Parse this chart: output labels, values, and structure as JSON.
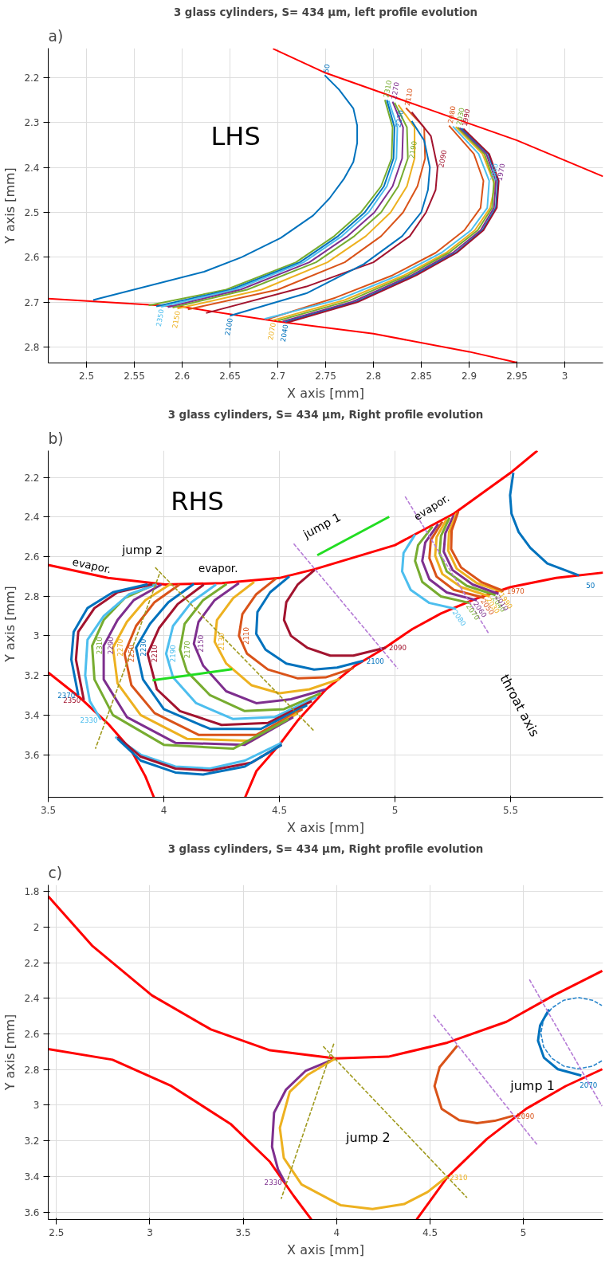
{
  "chart_data": [
    {
      "type": "line",
      "title": "3 glass cylinders, S= 434 μm, left profile evolution",
      "xlabel": "X axis [mm]",
      "ylabel": "Y axis [mm]",
      "xlim": [
        2.46,
        3.04
      ],
      "ylim": [
        2.835,
        2.135
      ],
      "xticks": [
        2.5,
        2.55,
        2.6,
        2.65,
        2.7,
        2.75,
        2.8,
        2.85,
        2.9,
        2.95,
        3
      ],
      "yticks": [
        2.2,
        2.3,
        2.4,
        2.5,
        2.6,
        2.7,
        2.8
      ],
      "grid": true,
      "series": [
        {
          "color": "#ff0000",
          "x": [
            2.695,
            2.75,
            2.85,
            2.95,
            3.04
          ],
          "values": [
            2.136,
            2.19,
            2.265,
            2.34,
            2.42
          ]
        },
        {
          "color": "#ff0000",
          "x": [
            2.46,
            2.6,
            2.7,
            2.8,
            2.9,
            2.95
          ],
          "values": [
            2.692,
            2.71,
            2.743,
            2.77,
            2.81,
            2.834
          ]
        },
        {
          "name": "50",
          "color": "#0072bd",
          "x": [
            2.749,
            2.764,
            2.779,
            2.783,
            2.783,
            2.779,
            2.769,
            2.754,
            2.737,
            2.703,
            2.662,
            2.623,
            2.507
          ],
          "values": [
            2.195,
            2.227,
            2.269,
            2.307,
            2.346,
            2.388,
            2.426,
            2.469,
            2.507,
            2.557,
            2.6,
            2.632,
            2.695
          ]
        },
        {
          "name": "2310",
          "color": "#77ac30",
          "x": [
            2.812,
            2.82,
            2.819,
            2.808,
            2.787,
            2.759,
            2.719,
            2.646,
            2.565
          ],
          "values": [
            2.25,
            2.311,
            2.38,
            2.442,
            2.5,
            2.553,
            2.611,
            2.672,
            2.707
          ]
        },
        {
          "name": "2230",
          "color": "#0072bd",
          "x": [
            2.814,
            2.822,
            2.821,
            2.811,
            2.791,
            2.763,
            2.723,
            2.651,
            2.573
          ],
          "values": [
            2.25,
            2.311,
            2.38,
            2.442,
            2.5,
            2.553,
            2.611,
            2.672,
            2.709
          ]
        },
        {
          "name": "2350",
          "color": "#4dbeee",
          "x": [
            2.816,
            2.825,
            2.824,
            2.814,
            2.795,
            2.767,
            2.727,
            2.655,
            2.578
          ],
          "values": [
            2.252,
            2.311,
            2.38,
            2.442,
            2.5,
            2.553,
            2.611,
            2.672,
            2.71
          ]
        },
        {
          "name": "2270",
          "color": "#7e2f8e",
          "x": [
            2.82,
            2.831,
            2.83,
            2.82,
            2.801,
            2.773,
            2.733,
            2.661,
            2.585
          ],
          "values": [
            2.254,
            2.311,
            2.38,
            2.442,
            2.5,
            2.553,
            2.611,
            2.672,
            2.711
          ]
        },
        {
          "name": "2190",
          "color": "#77ac30",
          "x": [
            2.822,
            2.835,
            2.836,
            2.826,
            2.808,
            2.78,
            2.74,
            2.668,
            2.59
          ],
          "values": [
            2.256,
            2.311,
            2.38,
            2.442,
            2.5,
            2.553,
            2.611,
            2.672,
            2.712
          ]
        },
        {
          "name": "2150",
          "color": "#edb120",
          "x": [
            2.826,
            2.843,
            2.843,
            2.835,
            2.818,
            2.792,
            2.752,
            2.683,
            2.595
          ],
          "values": [
            2.261,
            2.311,
            2.38,
            2.442,
            2.5,
            2.553,
            2.611,
            2.672,
            2.714
          ]
        },
        {
          "name": "2110",
          "color": "#d95319",
          "x": [
            2.834,
            2.853,
            2.854,
            2.846,
            2.831,
            2.808,
            2.77,
            2.7,
            2.606
          ],
          "values": [
            2.268,
            2.311,
            2.38,
            2.442,
            2.5,
            2.553,
            2.611,
            2.672,
            2.716
          ]
        },
        {
          "name": "2090",
          "color": "#a2142f",
          "x": [
            2.84,
            2.86,
            2.867,
            2.865,
            2.855,
            2.838,
            2.8,
            2.73,
            2.625
          ],
          "values": [
            2.277,
            2.33,
            2.4,
            2.45,
            2.5,
            2.553,
            2.611,
            2.665,
            2.724
          ]
        },
        {
          "name": "2100",
          "color": "#0072bd",
          "x": [
            2.84,
            2.853,
            2.859,
            2.857,
            2.85,
            2.83,
            2.79,
            2.73,
            2.65
          ],
          "values": [
            2.297,
            2.34,
            2.4,
            2.45,
            2.5,
            2.553,
            2.615,
            2.68,
            2.73
          ]
        },
        {
          "name": "2080",
          "color": "#d95319",
          "x": [
            2.879,
            2.905,
            2.915,
            2.912,
            2.895,
            2.865,
            2.82,
            2.76,
            2.69
          ],
          "values": [
            2.307,
            2.37,
            2.43,
            2.49,
            2.54,
            2.59,
            2.64,
            2.69,
            2.737
          ]
        },
        {
          "name": "2060",
          "color": "#4dbeee",
          "x": [
            2.883,
            2.91,
            2.921,
            2.919,
            2.902,
            2.871,
            2.826,
            2.765,
            2.686
          ],
          "values": [
            2.309,
            2.37,
            2.43,
            2.49,
            2.54,
            2.59,
            2.64,
            2.693,
            2.737
          ]
        },
        {
          "name": "2070",
          "color": "#edb120",
          "x": [
            2.886,
            2.914,
            2.927,
            2.922,
            2.906,
            2.876,
            2.832,
            2.77,
            2.695
          ],
          "values": [
            2.31,
            2.37,
            2.44,
            2.49,
            2.54,
            2.59,
            2.64,
            2.695,
            2.74
          ]
        },
        {
          "name": "2030",
          "color": "#77ac30",
          "x": [
            2.888,
            2.916,
            2.926,
            2.924,
            2.909,
            2.879,
            2.836,
            2.774,
            2.7
          ],
          "values": [
            2.311,
            2.37,
            2.43,
            2.49,
            2.54,
            2.59,
            2.64,
            2.697,
            2.741
          ]
        },
        {
          "name": "1970",
          "color": "#7e2f8e",
          "x": [
            2.89,
            2.918,
            2.928,
            2.926,
            2.912,
            2.883,
            2.84,
            2.778,
            2.705
          ],
          "values": [
            2.312,
            2.37,
            2.43,
            2.49,
            2.54,
            2.59,
            2.64,
            2.699,
            2.743
          ]
        },
        {
          "name": "2040",
          "color": "#0072bd",
          "x": [
            2.892,
            2.92,
            2.93,
            2.928,
            2.914,
            2.886,
            2.843,
            2.781,
            2.708
          ],
          "values": [
            2.313,
            2.37,
            2.43,
            2.49,
            2.54,
            2.59,
            2.64,
            2.7,
            2.744
          ]
        },
        {
          "name": "1990",
          "color": "#a2142f",
          "x": [
            2.894,
            2.921,
            2.931,
            2.929,
            2.915,
            2.887,
            2.845,
            2.783,
            2.71
          ],
          "values": [
            2.314,
            2.37,
            2.43,
            2.49,
            2.54,
            2.59,
            2.64,
            2.7,
            2.745
          ]
        }
      ],
      "annotations": [
        "a)",
        "LHS"
      ]
    },
    {
      "type": "line",
      "title": "3 glass cylinders, S= 434 μm, Right profile evolution",
      "xlabel": "X axis [mm]",
      "ylabel": "Y axis [mm]",
      "xlim": [
        3.5,
        5.9
      ],
      "ylim": [
        3.815,
        2.065
      ],
      "xticks": [
        3.5,
        4,
        4.5,
        5,
        5.5
      ],
      "yticks": [
        2.2,
        2.4,
        2.6,
        2.8,
        3,
        3.2,
        3.4,
        3.6
      ],
      "grid": true,
      "series": [
        {
          "color": "#ff0000",
          "x": [
            3.5,
            3.759,
            4.006,
            4.253,
            4.5,
            4.652,
            5.0,
            5.255,
            5.5,
            5.616
          ],
          "values": [
            2.642,
            2.708,
            2.741,
            2.734,
            2.708,
            2.664,
            2.542,
            2.383,
            2.177,
            2.065
          ]
        },
        {
          "color": "#ff0000",
          "x": [
            3.5,
            3.636,
            3.759,
            3.858,
            3.92,
            3.957
          ],
          "values": [
            3.185,
            3.311,
            3.444,
            3.576,
            3.709,
            3.815
          ]
        },
        {
          "color": "#ff0000",
          "x": [
            4.352,
            4.401,
            4.5,
            4.577,
            4.701,
            4.826,
            4.95,
            5.075,
            5.199,
            5.348,
            5.5,
            5.697,
            5.9
          ],
          "values": [
            3.815,
            3.682,
            3.55,
            3.431,
            3.271,
            3.152,
            3.066,
            2.966,
            2.887,
            2.814,
            2.754,
            2.708,
            2.681
          ]
        },
        {
          "name": "50",
          "color": "#0072bd",
          "x": [
            5.512,
            5.498,
            5.504,
            5.535,
            5.585,
            5.659,
            5.796
          ],
          "values": [
            2.177,
            2.29,
            2.383,
            2.476,
            2.555,
            2.635,
            2.695
          ]
        },
        {
          "name": "2080",
          "color": "#4dbeee",
          "x": [
            5.087,
            5.037,
            5.031,
            5.068,
            5.149,
            5.264
          ],
          "values": [
            2.489,
            2.582,
            2.675,
            2.768,
            2.834,
            2.864
          ]
        },
        {
          "name": "2070",
          "color": "#77ac30",
          "x": [
            5.162,
            5.1,
            5.087,
            5.118,
            5.199,
            5.323
          ],
          "values": [
            2.449,
            2.542,
            2.622,
            2.728,
            2.801,
            2.834
          ]
        },
        {
          "name": "2060",
          "color": "#7e2f8e",
          "x": [
            5.187,
            5.131,
            5.118,
            5.149,
            5.224,
            5.354
          ],
          "values": [
            2.436,
            2.529,
            2.622,
            2.715,
            2.781,
            2.821
          ]
        },
        {
          "name": "2050",
          "color": "#d95319",
          "x": [
            5.205,
            5.155,
            5.149,
            5.18,
            5.255,
            5.386
          ],
          "values": [
            2.423,
            2.516,
            2.608,
            2.701,
            2.768,
            2.808
          ]
        },
        {
          "name": "2030",
          "color": "#edb120",
          "x": [
            5.224,
            5.18,
            5.174,
            5.205,
            5.286,
            5.41
          ],
          "values": [
            2.41,
            2.502,
            2.595,
            2.688,
            2.754,
            2.801
          ]
        },
        {
          "name": "2040",
          "color": "#77ac30",
          "x": [
            5.236,
            5.199,
            5.193,
            5.224,
            5.311,
            5.435
          ],
          "values": [
            2.403,
            2.496,
            2.582,
            2.675,
            2.748,
            2.794
          ]
        },
        {
          "name": "2010",
          "color": "#7e2f8e",
          "x": [
            5.255,
            5.218,
            5.211,
            5.249,
            5.336,
            5.448
          ],
          "values": [
            2.39,
            2.482,
            2.575,
            2.668,
            2.741,
            2.788
          ]
        },
        {
          "name": "1990",
          "color": "#edb120",
          "x": [
            5.267,
            5.234,
            5.23,
            5.267,
            5.354,
            5.466
          ],
          "values": [
            2.38,
            2.476,
            2.569,
            2.661,
            2.734,
            2.778
          ]
        },
        {
          "name": "1970",
          "color": "#d95319",
          "x": [
            5.274,
            5.245,
            5.243,
            5.286,
            5.373,
            5.47
          ],
          "values": [
            2.372,
            2.469,
            2.562,
            2.655,
            2.728,
            2.774
          ]
        },
        {
          "name": "2090",
          "color": "#a2142f",
          "x": [
            4.652,
            4.58,
            4.53,
            4.52,
            4.55,
            4.62,
            4.72,
            4.82,
            4.96
          ],
          "values": [
            2.668,
            2.74,
            2.83,
            2.92,
            3.0,
            3.06,
            3.1,
            3.1,
            3.06
          ]
        },
        {
          "name": "2100",
          "color": "#0072bd",
          "x": [
            4.543,
            4.46,
            4.405,
            4.4,
            4.44,
            4.53,
            4.65,
            4.75,
            4.863
          ],
          "values": [
            2.7,
            2.78,
            2.88,
            2.99,
            3.07,
            3.14,
            3.17,
            3.16,
            3.126
          ]
        },
        {
          "name": "2110",
          "color": "#d95319",
          "x": [
            4.488,
            4.4,
            4.34,
            4.325,
            4.36,
            4.45,
            4.58,
            4.7,
            4.82
          ],
          "values": [
            2.708,
            2.79,
            2.89,
            3.0,
            3.09,
            3.17,
            3.215,
            3.21,
            3.163
          ]
        },
        {
          "name": "2130",
          "color": "#edb120",
          "x": [
            4.391,
            4.3,
            4.23,
            4.22,
            4.27,
            4.38,
            4.5,
            4.63,
            4.761
          ],
          "values": [
            2.728,
            2.81,
            2.92,
            3.03,
            3.14,
            3.25,
            3.29,
            3.27,
            3.218
          ]
        },
        {
          "name": "2150",
          "color": "#7e2f8e",
          "x": [
            4.325,
            4.22,
            4.15,
            4.13,
            4.17,
            4.27,
            4.4,
            4.55,
            4.699
          ],
          "values": [
            2.734,
            2.82,
            2.93,
            3.04,
            3.15,
            3.28,
            3.34,
            3.32,
            3.271
          ]
        },
        {
          "name": "2170",
          "color": "#77ac30",
          "x": [
            4.272,
            4.17,
            4.09,
            4.07,
            4.1,
            4.2,
            4.35,
            4.52,
            4.68
          ],
          "values": [
            2.738,
            2.82,
            2.94,
            3.07,
            3.18,
            3.3,
            3.38,
            3.37,
            3.29
          ]
        },
        {
          "name": "2190",
          "color": "#4dbeee",
          "x": [
            4.226,
            4.12,
            4.04,
            4.01,
            4.04,
            4.14,
            4.3,
            4.48,
            4.66
          ],
          "values": [
            2.741,
            2.83,
            2.95,
            3.09,
            3.21,
            3.34,
            3.42,
            3.41,
            3.31
          ]
        },
        {
          "name": "2210",
          "color": "#a2142f",
          "x": [
            4.173,
            4.06,
            3.98,
            3.93,
            3.97,
            4.07,
            4.25,
            4.45,
            4.64
          ],
          "values": [
            2.741,
            2.84,
            2.96,
            3.09,
            3.27,
            3.38,
            3.45,
            3.44,
            3.33
          ]
        },
        {
          "name": "2230",
          "color": "#0072bd",
          "x": [
            4.13,
            4.02,
            3.94,
            3.88,
            3.91,
            4.0,
            4.2,
            4.42,
            4.62
          ],
          "values": [
            2.738,
            2.83,
            2.94,
            3.06,
            3.22,
            3.37,
            3.47,
            3.47,
            3.35
          ]
        },
        {
          "name": "2250",
          "color": "#d95319",
          "x": [
            4.068,
            3.96,
            3.88,
            3.83,
            3.86,
            3.96,
            4.15,
            4.4,
            4.6
          ],
          "values": [
            2.741,
            2.83,
            2.95,
            3.09,
            3.25,
            3.39,
            3.5,
            3.5,
            3.37
          ]
        },
        {
          "name": "2270",
          "color": "#edb120",
          "x": [
            4.03,
            3.92,
            3.84,
            3.78,
            3.8,
            3.9,
            4.1,
            4.38,
            4.58
          ],
          "values": [
            2.738,
            2.82,
            2.93,
            3.06,
            3.24,
            3.4,
            3.52,
            3.53,
            3.39
          ]
        },
        {
          "name": "2290",
          "color": "#7e2f8e",
          "x": [
            3.99,
            3.87,
            3.8,
            3.74,
            3.74,
            3.84,
            4.05,
            4.35,
            4.56
          ],
          "values": [
            2.741,
            2.82,
            2.92,
            3.05,
            3.22,
            3.41,
            3.54,
            3.55,
            3.41
          ]
        },
        {
          "name": "2310",
          "color": "#77ac30",
          "x": [
            3.96,
            3.83,
            3.74,
            3.69,
            3.7,
            3.78,
            4.0,
            4.3,
            4.54
          ],
          "values": [
            2.74,
            2.81,
            2.92,
            3.05,
            3.22,
            3.4,
            3.55,
            3.57,
            3.42
          ]
        },
        {
          "name": "2330",
          "color": "#4dbeee",
          "x": [
            3.969,
            3.85,
            3.74,
            3.67,
            3.66,
            3.68,
            3.728
          ],
          "values": [
            2.741,
            2.79,
            2.9,
            3.02,
            3.2,
            3.33,
            3.424
          ]
        },
        {
          "name": "2350",
          "color": "#a2142f",
          "x": [
            3.95,
            3.8,
            3.7,
            3.63,
            3.62,
            3.654
          ],
          "values": [
            2.74,
            2.78,
            2.86,
            2.98,
            3.12,
            3.324
          ]
        },
        {
          "name": "2370",
          "color": "#0072bd",
          "x": [
            3.93,
            3.78,
            3.67,
            3.61,
            3.6,
            3.63
          ],
          "values": [
            2.74,
            2.78,
            2.86,
            2.98,
            3.12,
            3.3
          ]
        },
        {
          "color": "#4dbeee",
          "x": [
            3.79,
            3.9,
            4.05,
            4.2,
            4.35,
            4.51
          ],
          "values": [
            3.51,
            3.6,
            3.66,
            3.67,
            3.63,
            3.54
          ]
        },
        {
          "color": "#a2142f",
          "x": [
            3.8,
            3.9,
            4.05,
            4.2,
            4.38,
            4.51
          ],
          "values": [
            3.51,
            3.61,
            3.67,
            3.68,
            3.64,
            3.55
          ]
        },
        {
          "color": "#0072bd",
          "x": [
            3.8,
            3.9,
            4.05,
            4.17,
            4.35,
            4.51
          ],
          "values": [
            3.52,
            3.63,
            3.69,
            3.7,
            3.66,
            3.55
          ]
        },
        {
          "color": "#b57bd6",
          "line_style": "dashed",
          "x": [
            4.562,
            5.012
          ],
          "values": [
            2.535,
            3.165
          ]
        },
        {
          "color": "#b57bd6",
          "line_style": "dashed",
          "x": [
            5.044,
            5.404
          ],
          "values": [
            2.297,
            2.986
          ]
        },
        {
          "color": "#a09a1e",
          "line_style": "dashed",
          "x": [
            3.963,
            4.652
          ],
          "values": [
            2.655,
            3.483
          ]
        },
        {
          "color": "#a09a1e",
          "line_style": "dashed",
          "x": [
            3.981,
            3.704
          ],
          "values": [
            2.688,
            3.57
          ]
        },
        {
          "color": "#22dd22",
          "x": [
            4.975,
            4.664
          ],
          "values": [
            2.399,
            2.593
          ]
        },
        {
          "color": "#22dd22",
          "x": [
            4.296,
            3.951
          ],
          "values": [
            3.168,
            3.225
          ]
        }
      ],
      "annotations": [
        "b)",
        "RHS",
        "jump 1",
        "jump 2",
        "evapor.",
        "evapor.",
        "evapor.",
        "throat axis"
      ]
    },
    {
      "type": "line",
      "title": "3 glass cylinders, S= 434 μm, Right profile evolution",
      "xlabel": "X axis [mm]",
      "ylabel": "Y axis [mm]",
      "xlim": [
        2.456,
        5.426
      ],
      "ylim": [
        3.642,
        1.764
      ],
      "xticks": [
        2.5,
        3,
        3.5,
        4,
        4.5,
        5
      ],
      "yticks": [
        1.8,
        2,
        2.2,
        2.4,
        2.6,
        2.8,
        3,
        3.2,
        3.4,
        3.6
      ],
      "grid": true,
      "series": [
        {
          "color": "#ff0000",
          "x": [
            2.456,
            2.694,
            3.011,
            3.327,
            3.643,
            3.994,
            4.276,
            4.593,
            4.909,
            5.162,
            5.422
          ],
          "values": [
            1.828,
            2.108,
            2.384,
            2.575,
            2.692,
            2.738,
            2.728,
            2.649,
            2.532,
            2.384,
            2.246
          ]
        },
        {
          "color": "#ff0000",
          "x": [
            2.456,
            2.8,
            3.116,
            3.432,
            3.643,
            3.77,
            3.865
          ],
          "values": [
            2.685,
            2.745,
            2.893,
            3.105,
            3.318,
            3.509,
            3.642
          ]
        },
        {
          "color": "#ff0000",
          "x": [
            4.428,
            4.593,
            4.804,
            5.015,
            5.226,
            5.422
          ],
          "values": [
            3.642,
            3.403,
            3.19,
            3.02,
            2.893,
            2.798
          ]
        },
        {
          "color": "#2a86cc",
          "line_style": "dashed",
          "x": [
            5.42,
            5.37,
            5.293,
            5.216,
            5.152,
            5.108,
            5.093,
            5.108,
            5.152,
            5.216,
            5.293,
            5.37,
            5.42
          ],
          "values": [
            2.751,
            2.781,
            2.796,
            2.781,
            2.737,
            2.673,
            2.596,
            2.519,
            2.455,
            2.411,
            2.396,
            2.411,
            2.441
          ]
        },
        {
          "name": "2330",
          "color": "#7e2f8e",
          "x": [
            3.994,
            3.833,
            3.728,
            3.665,
            3.654,
            3.686,
            3.724
          ],
          "values": [
            2.738,
            2.808,
            2.914,
            3.042,
            3.233,
            3.36,
            3.434
          ]
        },
        {
          "name": "2310",
          "color": "#edb120",
          "x": [
            3.994,
            3.846,
            3.749,
            3.696,
            3.717,
            3.812,
            4.023,
            4.192,
            4.361,
            4.487,
            4.589
          ],
          "values": [
            2.738,
            2.829,
            2.925,
            3.127,
            3.296,
            3.445,
            3.562,
            3.583,
            3.555,
            3.487,
            3.403
          ]
        },
        {
          "name": "2090",
          "color": "#d95319",
          "x": [
            4.646,
            4.551,
            4.524,
            4.562,
            4.656,
            4.751,
            4.846,
            4.947
          ],
          "values": [
            2.666,
            2.787,
            2.893,
            3.02,
            3.084,
            3.101,
            3.088,
            3.059
          ]
        },
        {
          "name": "2070",
          "color": "#0072bd",
          "x": [
            5.137,
            5.089,
            5.078,
            5.11,
            5.184,
            5.31
          ],
          "values": [
            2.462,
            2.553,
            2.638,
            2.734,
            2.798,
            2.834
          ]
        },
        {
          "color": "#a09a1e",
          "line_style": "dashed",
          "x": [
            3.928,
            4.698
          ],
          "values": [
            2.67,
            3.519
          ]
        },
        {
          "color": "#a09a1e",
          "line_style": "dashed",
          "x": [
            3.985,
            3.703
          ],
          "values": [
            2.655,
            3.526
          ]
        },
        {
          "color": "#b57bd6",
          "line_style": "dashed",
          "x": [
            4.519,
            5.078
          ],
          "values": [
            2.494,
            3.228
          ]
        },
        {
          "color": "#b57bd6",
          "line_style": "dashed",
          "x": [
            5.032,
            5.42
          ],
          "values": [
            2.295,
            3.005
          ]
        }
      ],
      "annotations": [
        "c)",
        "jump 1",
        "jump 2"
      ]
    }
  ]
}
